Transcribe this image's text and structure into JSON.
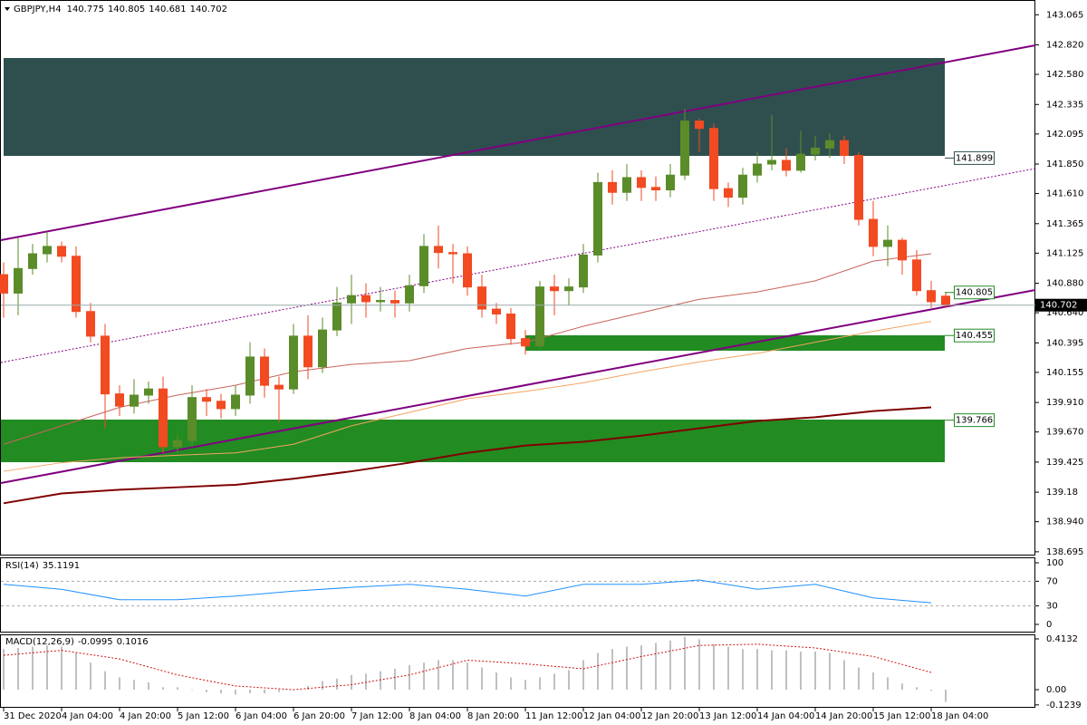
{
  "chart_data": [
    {
      "type": "candlestick",
      "title": "GBPJPY,H4",
      "x": [
        "31 Dec 2020",
        null,
        null,
        null,
        "4 Jan 04:00",
        null,
        null,
        null,
        "4 Jan 20:00",
        null,
        null,
        null,
        "5 Jan 12:00",
        null,
        null,
        null,
        "6 Jan 04:00",
        null,
        null,
        null,
        "6 Jan 20:00",
        null,
        null,
        null,
        "7 Jan 12:00",
        null,
        null,
        null,
        "8 Jan 04:00",
        null,
        null,
        null,
        "8 Jan 20:00",
        null,
        null,
        null,
        "11 Jan 12:00",
        null,
        null,
        null,
        "12 Jan 04:00",
        null,
        null,
        null,
        "12 Jan 20:00",
        null,
        null,
        null,
        "13 Jan 12:00",
        null,
        null,
        null,
        "14 Jan 04:00",
        null,
        null,
        null,
        "14 Jan 20:00",
        null,
        null,
        null,
        "15 Jan 12:00",
        null,
        null,
        null,
        "18 Jan 04:00",
        null
      ],
      "open": [
        140.95,
        140.8,
        141.0,
        141.12,
        141.18,
        141.1,
        140.65,
        140.45,
        139.98,
        139.88,
        139.97,
        140.02,
        139.55,
        139.6,
        139.95,
        139.92,
        139.86,
        139.97,
        140.28,
        140.05,
        140.02,
        140.45,
        140.2,
        140.5,
        140.72,
        140.78,
        140.73,
        140.74,
        140.72,
        140.86,
        141.18,
        141.13,
        141.12,
        140.85,
        140.67,
        140.63,
        140.43,
        140.37,
        140.85,
        140.82,
        140.85,
        141.11,
        141.7,
        141.62,
        141.74,
        141.66,
        141.64,
        141.76,
        142.2,
        142.14,
        141.65,
        141.58,
        141.76,
        141.85,
        141.88,
        141.8,
        141.93,
        141.98,
        142.04,
        141.92,
        141.4,
        141.18,
        141.23,
        141.07,
        140.82,
        140.775
      ],
      "high": [
        141.05,
        141.25,
        141.2,
        141.3,
        141.22,
        141.18,
        140.72,
        140.55,
        140.05,
        140.1,
        140.08,
        140.12,
        139.65,
        140.05,
        140.02,
        139.98,
        140.05,
        140.4,
        140.35,
        140.12,
        140.55,
        140.62,
        140.6,
        140.85,
        140.95,
        140.88,
        140.85,
        140.82,
        140.95,
        141.28,
        141.35,
        141.2,
        141.18,
        140.95,
        140.72,
        140.68,
        140.5,
        140.9,
        140.95,
        140.92,
        141.2,
        141.78,
        141.8,
        141.85,
        141.8,
        141.75,
        141.85,
        142.3,
        142.22,
        142.18,
        141.7,
        141.82,
        141.95,
        142.25,
        141.98,
        142.12,
        142.08,
        142.1,
        142.08,
        141.95,
        141.55,
        141.35,
        141.25,
        141.15,
        140.9,
        140.805
      ],
      "low": [
        140.6,
        140.62,
        140.95,
        141.05,
        141.05,
        140.6,
        140.4,
        139.7,
        139.8,
        139.82,
        139.9,
        139.5,
        139.5,
        139.55,
        139.8,
        139.78,
        139.8,
        139.9,
        139.95,
        139.75,
        139.98,
        140.1,
        140.15,
        140.45,
        140.55,
        140.6,
        140.65,
        140.6,
        140.65,
        140.8,
        141.0,
        140.88,
        140.78,
        140.6,
        140.55,
        140.38,
        140.3,
        140.35,
        140.62,
        140.7,
        140.8,
        141.05,
        141.52,
        141.55,
        141.55,
        141.55,
        141.58,
        141.72,
        141.95,
        141.55,
        141.5,
        141.52,
        141.7,
        141.8,
        141.75,
        141.78,
        141.88,
        141.9,
        141.85,
        141.35,
        141.1,
        141.02,
        140.95,
        140.78,
        140.68,
        140.681
      ],
      "close": [
        140.8,
        141.0,
        141.12,
        141.18,
        141.1,
        140.65,
        140.45,
        139.98,
        139.88,
        139.97,
        140.02,
        139.55,
        139.6,
        139.95,
        139.92,
        139.86,
        139.97,
        140.28,
        140.05,
        140.02,
        140.45,
        140.2,
        140.5,
        140.72,
        140.78,
        140.73,
        140.74,
        140.72,
        140.86,
        141.18,
        141.13,
        141.12,
        140.85,
        140.67,
        140.63,
        140.43,
        140.37,
        140.85,
        140.82,
        140.85,
        141.11,
        141.7,
        141.62,
        141.74,
        141.66,
        141.64,
        141.76,
        142.2,
        142.14,
        141.65,
        141.58,
        141.76,
        141.85,
        141.88,
        141.8,
        141.93,
        141.98,
        142.04,
        141.92,
        141.4,
        141.18,
        141.23,
        141.07,
        140.82,
        140.73,
        140.702
      ],
      "up_color": "#5b8c2a",
      "down_color": "#f24a21",
      "overlays": [
        {
          "color": "#c8645a",
          "values": [
            139.57,
            139.72,
            139.87,
            139.97,
            140.05,
            140.16,
            140.22,
            140.25,
            140.35,
            140.4,
            140.53,
            140.64,
            140.75,
            140.81,
            140.9,
            141.06,
            141.12
          ]
        },
        {
          "color": "#f4a460",
          "values": [
            139.35,
            139.42,
            139.46,
            139.48,
            139.5,
            139.57,
            139.72,
            139.83,
            139.94,
            140.0,
            140.07,
            140.16,
            140.24,
            140.31,
            140.4,
            140.49,
            140.57
          ]
        },
        {
          "color": "#800000",
          "values": [
            139.09,
            139.17,
            139.2,
            139.22,
            139.24,
            139.29,
            139.35,
            139.42,
            139.5,
            139.56,
            139.59,
            139.64,
            139.7,
            139.76,
            139.79,
            139.84,
            139.87
          ]
        }
      ],
      "levels": [
        {
          "value": 141.899,
          "color": "#2f4f4f"
        },
        {
          "value": 140.805,
          "color": "#228b22"
        },
        {
          "value": 140.455,
          "color": "#228b22"
        },
        {
          "value": 139.766,
          "color": "#228b22"
        }
      ],
      "ylim": [
        138.672,
        143.185
      ],
      "yticks": [
        143.065,
        {
          "value": 142.82,
          "label": "142.820"
        },
        {
          "value": 142.58,
          "label": "142.580"
        },
        142.335,
        142.095,
        {
          "value": 141.85,
          "label": "141.850"
        },
        {
          "value": 141.61,
          "label": "141.610"
        },
        141.365,
        141.125,
        {
          "value": 140.88,
          "label": "140.880"
        },
        {
          "value": 140.64,
          "label": "140.640"
        },
        140.395,
        140.155,
        {
          "value": 139.91,
          "label": "139.910"
        },
        {
          "value": 139.67,
          "label": "139.670"
        },
        139.425,
        139.18,
        {
          "value": 138.94,
          "label": "138.940"
        },
        138.695
      ]
    },
    {
      "type": "line",
      "title": "RSI(14)",
      "current": 35.1191,
      "color": "#1e90ff",
      "values": [
        65,
        57,
        40,
        40,
        46,
        54,
        60,
        65,
        57,
        46,
        65,
        65,
        72,
        57,
        65,
        43,
        35
      ],
      "ylim": [
        -11.8,
        108.8
      ],
      "yticks": [
        100,
        70,
        30,
        0
      ]
    },
    {
      "type": "bar",
      "title": "MACD(12,26,9)",
      "color": "#c0c0c0",
      "values": [
        0.33,
        0.34,
        0.35,
        0.36,
        0.35,
        0.3,
        0.22,
        0.15,
        0.1,
        0.08,
        0.06,
        0.02,
        0.02,
        0.0,
        -0.02,
        -0.03,
        -0.04,
        -0.03,
        -0.03,
        -0.02,
        0.0,
        0.03,
        0.07,
        0.09,
        0.12,
        0.13,
        0.15,
        0.17,
        0.2,
        0.22,
        0.24,
        0.24,
        0.22,
        0.18,
        0.14,
        0.1,
        0.08,
        0.1,
        0.13,
        0.16,
        0.24,
        0.3,
        0.33,
        0.35,
        0.36,
        0.38,
        0.4,
        0.43,
        0.41,
        0.37,
        0.35,
        0.33,
        0.33,
        0.32,
        0.32,
        0.31,
        0.31,
        0.3,
        0.24,
        0.18,
        0.14,
        0.1,
        0.05,
        0.02,
        -0.01,
        -0.0995
      ],
      "signal": {
        "color": "#d01010",
        "values": [
          0.28,
          0.32,
          0.25,
          0.12,
          0.03,
          0.0,
          0.04,
          0.12,
          0.24,
          0.21,
          0.17,
          0.27,
          0.36,
          0.37,
          0.34,
          0.27,
          0.14
        ]
      },
      "current_signal": 0.1016,
      "ylim": [
        -0.14,
        0.45
      ],
      "yticks": [
        0.4132,
        {
          "value": 0,
          "label": "0.00"
        },
        -0.1239
      ]
    }
  ]
}
